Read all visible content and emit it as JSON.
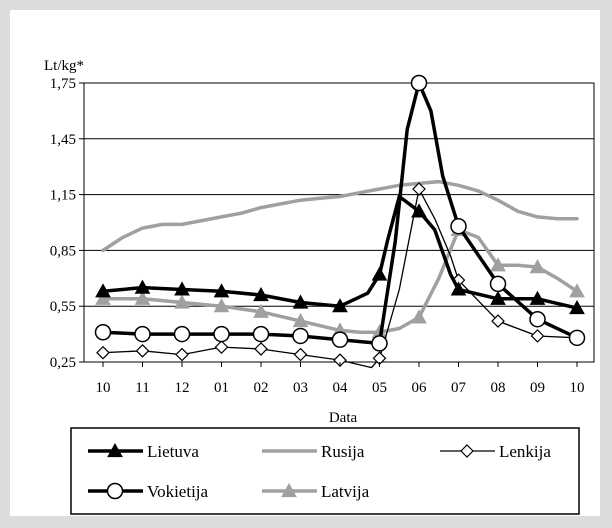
{
  "chart_data": {
    "type": "line",
    "title": "",
    "ylabel": "Lt/kg*",
    "xlabel": "Data",
    "categories": [
      "10",
      "11",
      "12",
      "01",
      "02",
      "03",
      "04",
      "05",
      "06",
      "07",
      "08",
      "09",
      "10"
    ],
    "yticks": [
      "1,75",
      "1,45",
      "1,15",
      "0,85",
      "0,55",
      "0,25"
    ],
    "ytick_values": [
      1.75,
      1.45,
      1.15,
      0.85,
      0.55,
      0.25
    ],
    "ylim": [
      0.25,
      1.75
    ],
    "grid": "horizontal",
    "legend_position": "bottom",
    "series": [
      {
        "name": "Lietuva",
        "color": "#000000",
        "style": "thick-line-filled-triangle",
        "x": [
          0,
          1,
          2,
          3,
          4,
          5,
          6,
          6.7,
          7,
          7.2,
          7.5,
          8,
          8.4,
          8.8,
          9,
          10,
          11,
          12
        ],
        "y": [
          0.63,
          0.65,
          0.64,
          0.63,
          0.61,
          0.57,
          0.55,
          0.62,
          0.72,
          0.9,
          1.14,
          1.06,
          0.96,
          0.72,
          0.64,
          0.59,
          0.59,
          0.54
        ]
      },
      {
        "name": "Rusija",
        "color": "#a0a0a0",
        "style": "thick-line",
        "x": [
          0,
          0.5,
          1,
          1.5,
          2,
          2.5,
          3,
          3.5,
          4,
          4.5,
          5,
          5.5,
          6,
          6.5,
          7,
          7.5,
          8,
          8.5,
          9,
          9.5,
          10,
          10.5,
          11,
          11.5,
          12
        ],
        "y": [
          0.85,
          0.92,
          0.97,
          0.99,
          0.99,
          1.01,
          1.03,
          1.05,
          1.08,
          1.1,
          1.12,
          1.13,
          1.14,
          1.16,
          1.18,
          1.2,
          1.21,
          1.22,
          1.2,
          1.17,
          1.12,
          1.06,
          1.03,
          1.02,
          1.02
        ]
      },
      {
        "name": "Lenkija",
        "color": "#000000",
        "style": "thin-line-open-diamond",
        "x": [
          0,
          1,
          2,
          3,
          4,
          5,
          6,
          6.8,
          7,
          7.5,
          8,
          8.4,
          8.8,
          9,
          10,
          11,
          12
        ],
        "y": [
          0.3,
          0.31,
          0.29,
          0.33,
          0.32,
          0.29,
          0.26,
          0.22,
          0.27,
          0.64,
          1.18,
          1.02,
          0.82,
          0.69,
          0.47,
          0.39,
          0.38
        ]
      },
      {
        "name": "Vokietija",
        "color": "#000000",
        "style": "thick-line-open-circle",
        "x": [
          0,
          1,
          2,
          3,
          4,
          5,
          6,
          7,
          7.4,
          7.7,
          8,
          8.3,
          8.6,
          9,
          10,
          11,
          12
        ],
        "y": [
          0.41,
          0.4,
          0.4,
          0.4,
          0.4,
          0.39,
          0.37,
          0.35,
          0.9,
          1.5,
          1.75,
          1.6,
          1.25,
          0.98,
          0.67,
          0.48,
          0.38
        ]
      },
      {
        "name": "Latvija",
        "color": "#a0a0a0",
        "style": "thick-line-filled-triangle",
        "x": [
          0,
          1,
          2,
          3,
          4,
          5,
          6,
          6.5,
          7,
          7.5,
          8,
          8.5,
          9,
          9.5,
          10,
          10.5,
          11,
          11.5,
          12
        ],
        "y": [
          0.59,
          0.59,
          0.57,
          0.55,
          0.52,
          0.47,
          0.42,
          0.41,
          0.41,
          0.43,
          0.49,
          0.7,
          0.96,
          0.92,
          0.77,
          0.77,
          0.76,
          0.7,
          0.63
        ]
      }
    ],
    "legend_order": [
      "Lietuva",
      "Rusija",
      "Lenkija",
      "Vokietija",
      "Latvija"
    ]
  }
}
